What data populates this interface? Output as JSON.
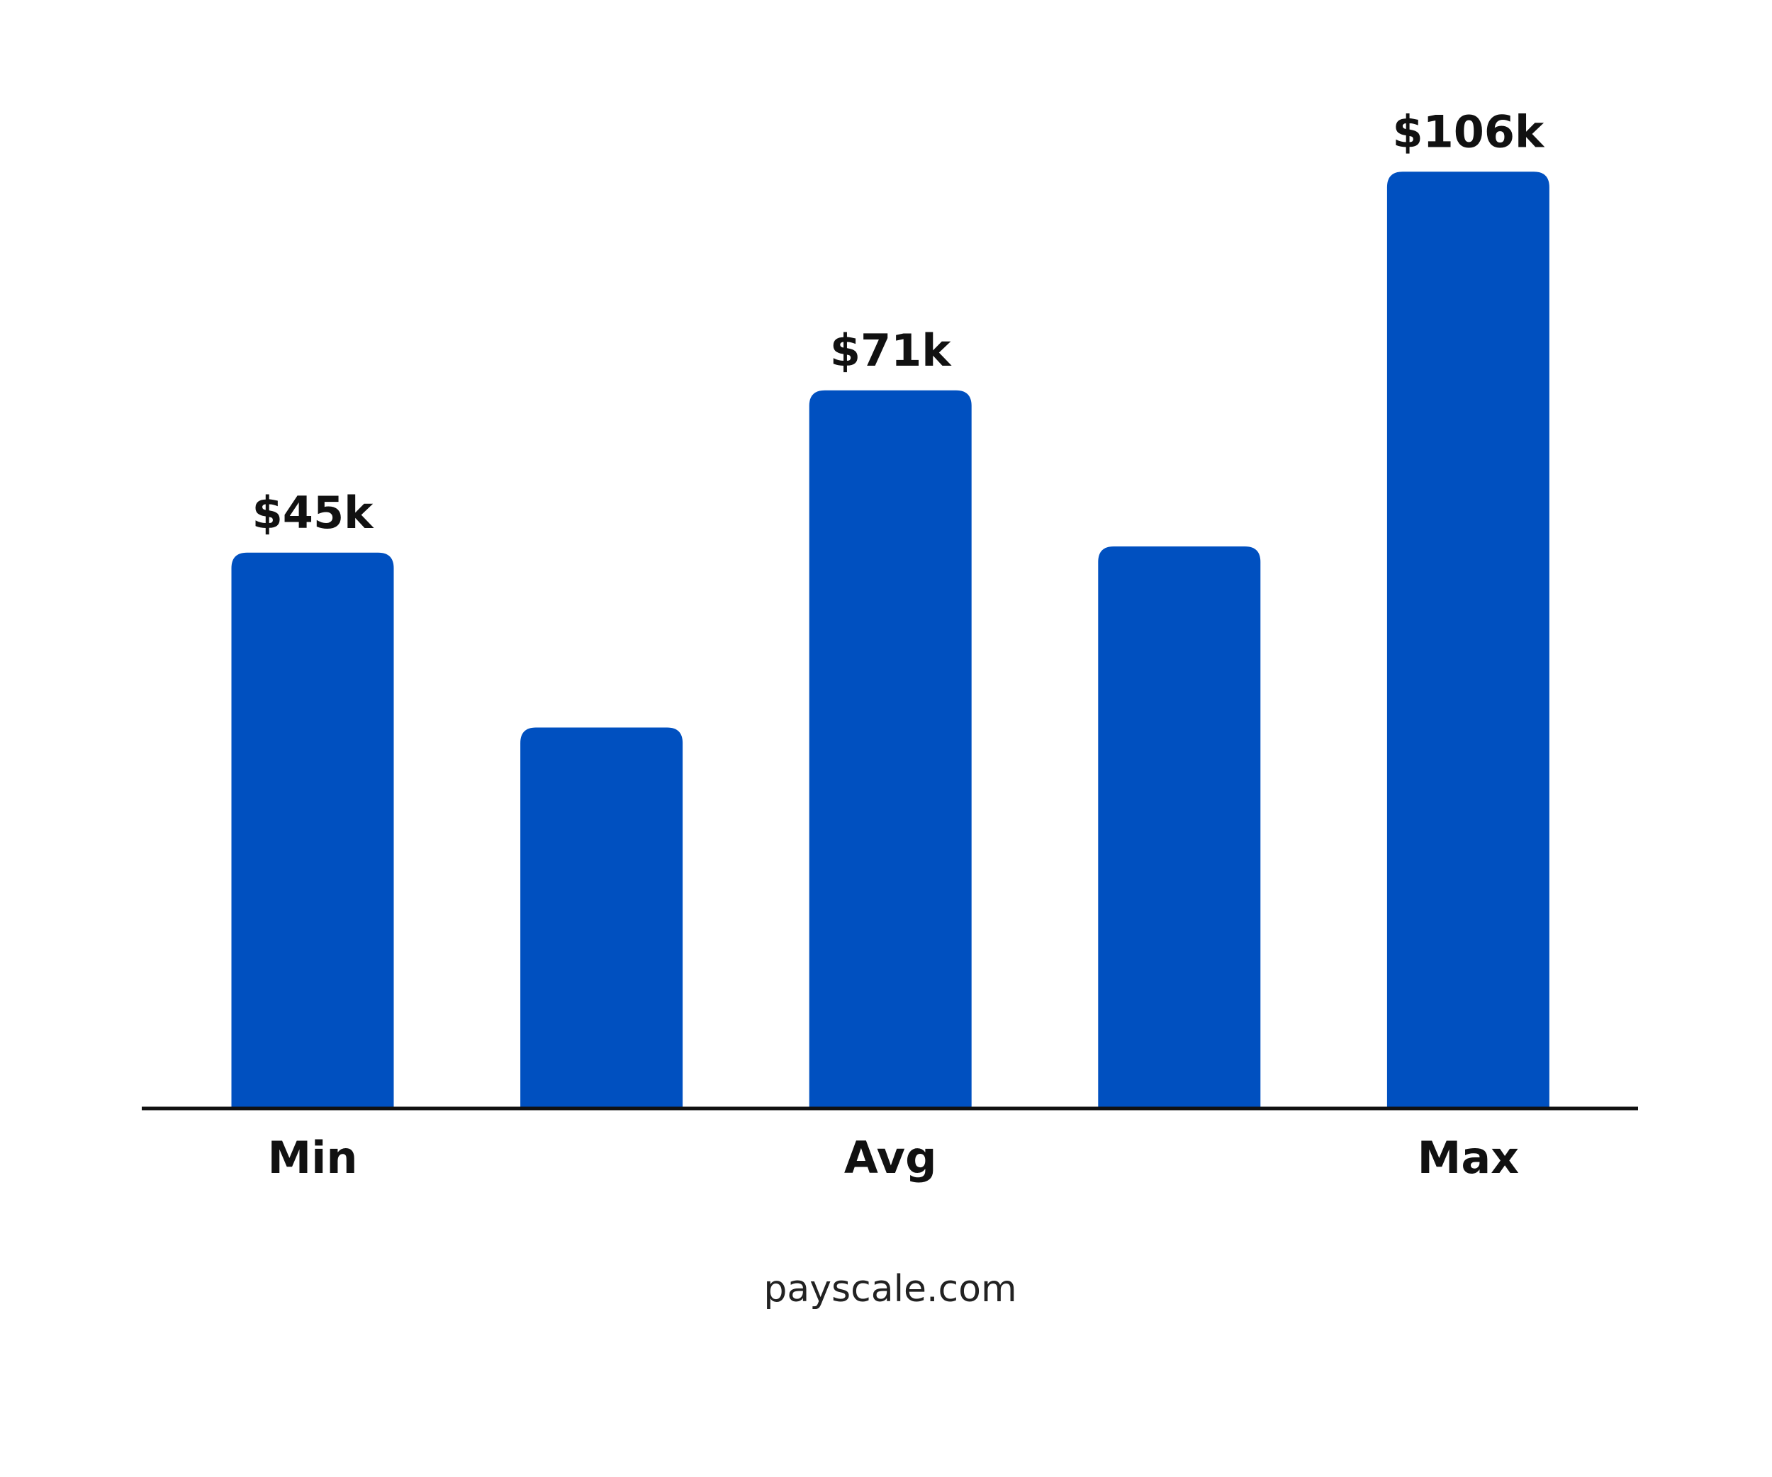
{
  "chart_data": {
    "type": "bar",
    "categories": [
      "Min",
      null,
      "Avg",
      null,
      "Max"
    ],
    "values": [
      45,
      17,
      71,
      46,
      106
    ],
    "value_labels": [
      "$45k",
      null,
      "$71k",
      null,
      "$106k"
    ],
    "color": "#0050c0",
    "ylim": [
      -44,
      115
    ],
    "source": "payscale.com"
  }
}
